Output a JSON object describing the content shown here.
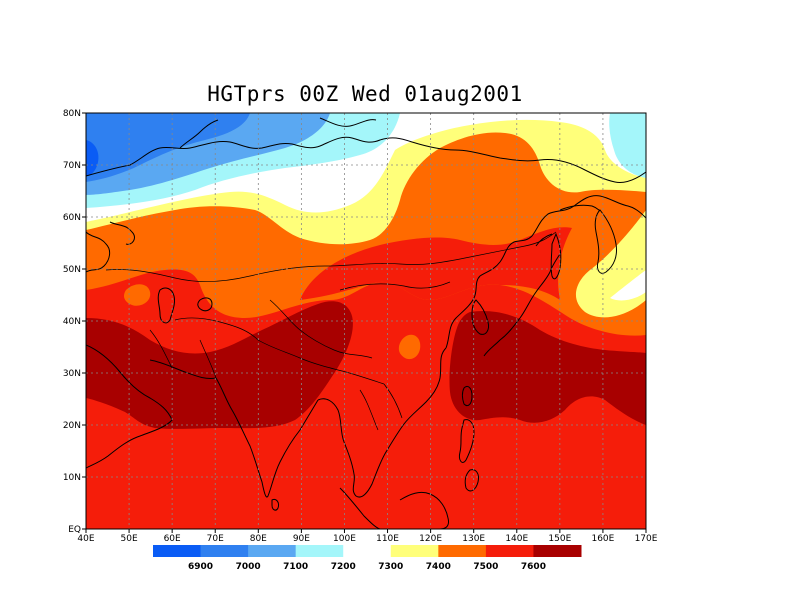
{
  "title": "HGTprs 00Z Wed 01aug2001",
  "map": {
    "lat_labels": [
      "80N",
      "70N",
      "60N",
      "50N",
      "40N",
      "30N",
      "20N",
      "10N",
      "EQ"
    ],
    "lon_labels": [
      "40E",
      "50E",
      "60E",
      "70E",
      "80E",
      "90E",
      "100E",
      "110E",
      "120E",
      "130E",
      "140E",
      "150E",
      "160E",
      "170E"
    ]
  },
  "colorbar": {
    "colors": [
      "#0a5cf5",
      "#2f80f0",
      "#5aa8f2",
      "#a4f6fa",
      "#ffffff",
      "#ffff7a",
      "#ff6a00",
      "#f51d0a",
      "#a80000"
    ],
    "labels": [
      "6900",
      "7000",
      "7100",
      "7200",
      "7300",
      "7400",
      "7500",
      "7600"
    ]
  },
  "palette": {
    "c6900": "#0a5cf5",
    "c7000": "#2f80f0",
    "c7100": "#5aa8f2",
    "c7200": "#a4f6fa",
    "c7300": "#ffffff",
    "c7400": "#ffff7a",
    "c7500": "#ff6a00",
    "c7600": "#f51d0a",
    "cmax": "#a80000"
  }
}
